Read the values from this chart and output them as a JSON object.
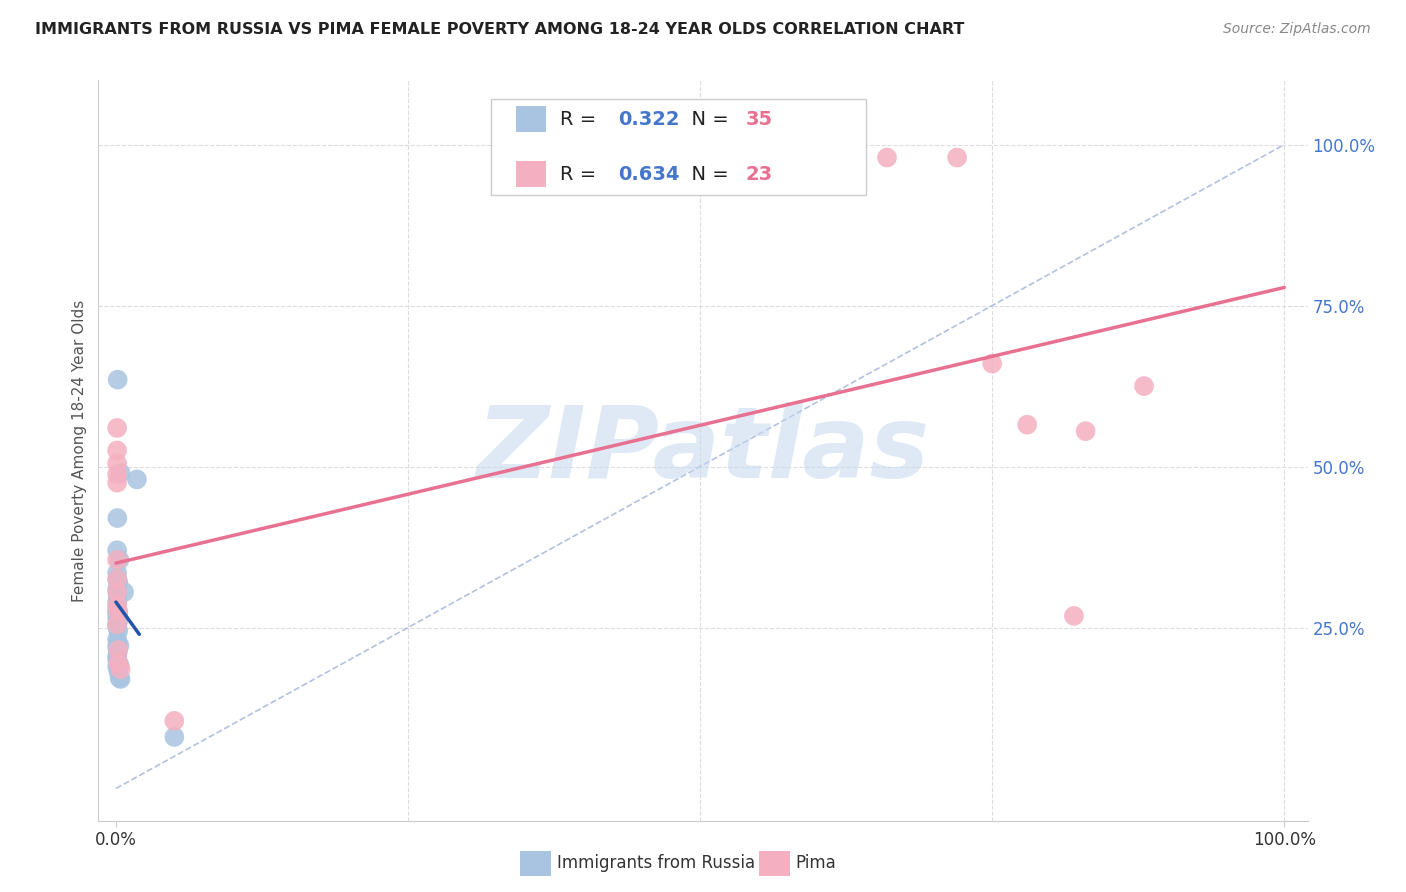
{
  "title": "IMMIGRANTS FROM RUSSIA VS PIMA FEMALE POVERTY AMONG 18-24 YEAR OLDS CORRELATION CHART",
  "source": "Source: ZipAtlas.com",
  "ylabel": "Female Poverty Among 18-24 Year Olds",
  "legend_labels": [
    "Immigrants from Russia",
    "Pima"
  ],
  "blue_R": "0.322",
  "blue_N": "35",
  "pink_R": "0.634",
  "pink_N": "23",
  "blue_color": "#a8c4e0",
  "pink_color": "#f4b0c0",
  "blue_line_color": "#2255aa",
  "pink_line_color": "#e87090",
  "diag_color": "#aabbdd",
  "blue_scatter": [
    [
      0.0015,
      0.635
    ],
    [
      0.004,
      0.49
    ],
    [
      0.0012,
      0.42
    ],
    [
      0.001,
      0.37
    ],
    [
      0.003,
      0.355
    ],
    [
      0.001,
      0.335
    ],
    [
      0.0012,
      0.325
    ],
    [
      0.002,
      0.32
    ],
    [
      0.001,
      0.31
    ],
    [
      0.0015,
      0.3
    ],
    [
      0.001,
      0.29
    ],
    [
      0.001,
      0.28
    ],
    [
      0.001,
      0.274
    ],
    [
      0.0012,
      0.272
    ],
    [
      0.002,
      0.27
    ],
    [
      0.001,
      0.265
    ],
    [
      0.002,
      0.26
    ],
    [
      0.001,
      0.255
    ],
    [
      0.001,
      0.252
    ],
    [
      0.002,
      0.245
    ],
    [
      0.001,
      0.232
    ],
    [
      0.0015,
      0.225
    ],
    [
      0.003,
      0.222
    ],
    [
      0.001,
      0.22
    ],
    [
      0.0015,
      0.212
    ],
    [
      0.001,
      0.205
    ],
    [
      0.001,
      0.2
    ],
    [
      0.003,
      0.192
    ],
    [
      0.001,
      0.19
    ],
    [
      0.002,
      0.182
    ],
    [
      0.003,
      0.172
    ],
    [
      0.004,
      0.17
    ],
    [
      0.007,
      0.305
    ],
    [
      0.018,
      0.48
    ],
    [
      0.05,
      0.08
    ]
  ],
  "pink_scatter": [
    [
      0.001,
      0.56
    ],
    [
      0.001,
      0.525
    ],
    [
      0.001,
      0.505
    ],
    [
      0.001,
      0.488
    ],
    [
      0.001,
      0.475
    ],
    [
      0.001,
      0.355
    ],
    [
      0.001,
      0.325
    ],
    [
      0.001,
      0.305
    ],
    [
      0.001,
      0.285
    ],
    [
      0.002,
      0.275
    ],
    [
      0.001,
      0.255
    ],
    [
      0.002,
      0.215
    ],
    [
      0.002,
      0.195
    ],
    [
      0.004,
      0.185
    ],
    [
      0.05,
      0.105
    ],
    [
      0.6,
      0.98
    ],
    [
      0.66,
      0.98
    ],
    [
      0.72,
      0.98
    ],
    [
      0.75,
      0.66
    ],
    [
      0.78,
      0.565
    ],
    [
      0.83,
      0.555
    ],
    [
      0.88,
      0.625
    ],
    [
      0.82,
      0.268
    ]
  ],
  "xlim": [
    -0.015,
    1.02
  ],
  "ylim": [
    -0.05,
    1.1
  ],
  "background_color": "#ffffff",
  "grid_color": "#dddddd"
}
